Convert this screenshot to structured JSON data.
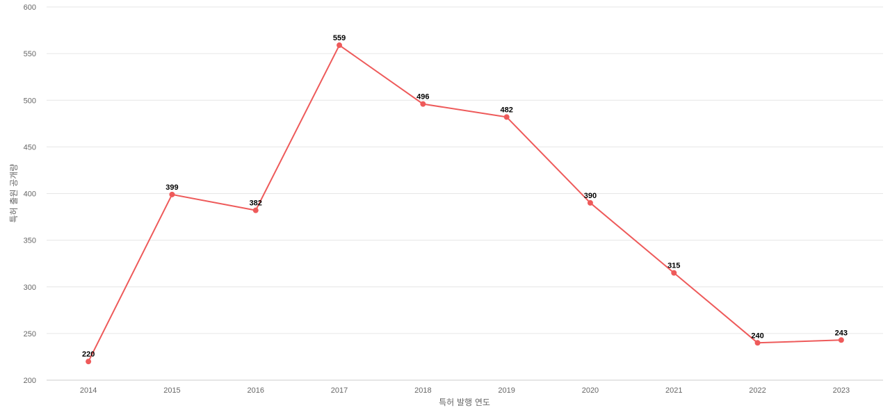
{
  "chart_data": {
    "type": "line",
    "title": "",
    "xlabel": "특허 발행 연도",
    "ylabel": "특허 출원 공개량",
    "categories": [
      "2014",
      "2015",
      "2016",
      "2017",
      "2018",
      "2019",
      "2020",
      "2021",
      "2022",
      "2023"
    ],
    "series": [
      {
        "values": [
          220,
          399,
          382,
          559,
          496,
          482,
          390,
          315,
          240,
          243
        ],
        "color": "#ee5a5a"
      }
    ],
    "ylim": [
      200,
      600
    ],
    "yticks": [
      200,
      250,
      300,
      350,
      400,
      450,
      500,
      550,
      600
    ],
    "grid": true,
    "data_labels": true,
    "legend": "none"
  }
}
